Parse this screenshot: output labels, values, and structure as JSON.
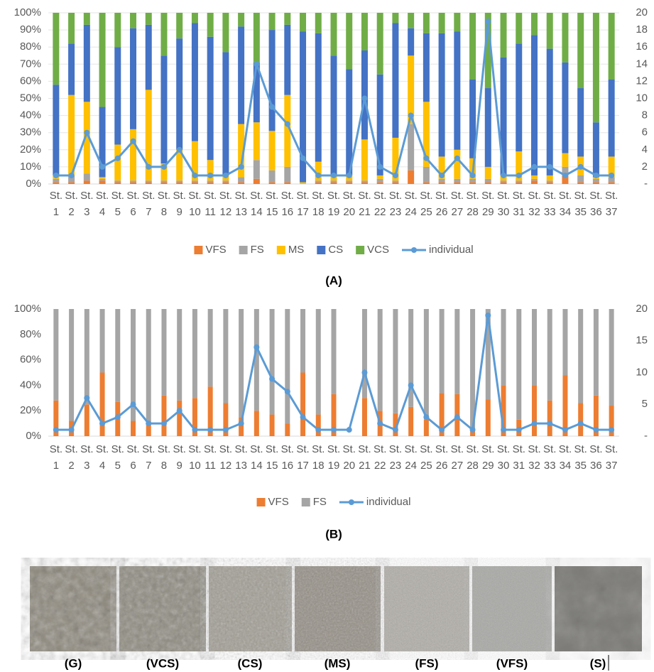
{
  "chart_data": [
    {
      "type": "bar",
      "stacked": true,
      "grid": true,
      "categories": [
        "St. 1",
        "St. 2",
        "St. 3",
        "St. 4",
        "St. 5",
        "St. 6",
        "St. 7",
        "St. 8",
        "St. 9",
        "St. 10",
        "St. 11",
        "St. 12",
        "St. 13",
        "St. 14",
        "St. 15",
        "St. 16",
        "St. 17",
        "St. 18",
        "St. 19",
        "St. 20",
        "St. 21",
        "St. 22",
        "St. 23",
        "St. 24",
        "St. 25",
        "St. 26",
        "St. 27",
        "St. 28",
        "St. 29",
        "St. 30",
        "St. 31",
        "St. 32",
        "St. 33",
        "St. 34",
        "St. 35",
        "St. 36",
        "St. 37"
      ],
      "ylim": [
        0,
        100
      ],
      "yticks": [
        {
          "value": 0,
          "label": "0%"
        },
        {
          "value": 10,
          "label": "10%"
        },
        {
          "value": 20,
          "label": "20%"
        },
        {
          "value": 30,
          "label": "30%"
        },
        {
          "value": 40,
          "label": "40%"
        },
        {
          "value": 50,
          "label": "50%"
        },
        {
          "value": 60,
          "label": "60%"
        },
        {
          "value": 70,
          "label": "70%"
        },
        {
          "value": 80,
          "label": "80%"
        },
        {
          "value": 90,
          "label": "90%"
        },
        {
          "value": 100,
          "label": "100%"
        }
      ],
      "y2lim": [
        0,
        20
      ],
      "y2ticks": [
        {
          "value": 0,
          "label": "-"
        },
        2,
        4,
        6,
        8,
        10,
        12,
        14,
        16,
        18,
        20
      ],
      "series": [
        {
          "name": "VFS",
          "color": "#ed7d31",
          "values": [
            1,
            1,
            2,
            2,
            1,
            1,
            1,
            1,
            1,
            1,
            1,
            1,
            1,
            3,
            1,
            1,
            0,
            1,
            1,
            1,
            1,
            1,
            1,
            8,
            1,
            1,
            1,
            1,
            1,
            1,
            1,
            2,
            1,
            5,
            1,
            1,
            1
          ]
        },
        {
          "name": "FS",
          "color": "#a5a5a5",
          "values": [
            2,
            4,
            4,
            1,
            1,
            1,
            1,
            1,
            1,
            1,
            1,
            1,
            3,
            11,
            7,
            9,
            0,
            1,
            1,
            1,
            1,
            2,
            1,
            27,
            9,
            2,
            2,
            2,
            2,
            1,
            1,
            1,
            1,
            5,
            4,
            2,
            3
          ]
        },
        {
          "name": "MS",
          "color": "#ffc000",
          "values": [
            2,
            47,
            42,
            1,
            21,
            30,
            53,
            10,
            18,
            23,
            12,
            3,
            31,
            22,
            23,
            42,
            1,
            11,
            3,
            3,
            24,
            2,
            25,
            40,
            38,
            13,
            17,
            12,
            7,
            3,
            17,
            2,
            3,
            8,
            11,
            1,
            12
          ]
        },
        {
          "name": "CS",
          "color": "#4472c4",
          "values": [
            53,
            30,
            45,
            41,
            57,
            59,
            38,
            63,
            65,
            69,
            72,
            72,
            57,
            35,
            59,
            41,
            88,
            75,
            70,
            62,
            52,
            59,
            67,
            16,
            40,
            72,
            69,
            46,
            46,
            69,
            63,
            82,
            74,
            53,
            40,
            32,
            45
          ]
        },
        {
          "name": "VCS",
          "color": "#70ad47",
          "values": [
            42,
            18,
            7,
            55,
            20,
            9,
            7,
            25,
            15,
            6,
            14,
            23,
            8,
            29,
            10,
            7,
            11,
            12,
            25,
            33,
            22,
            36,
            6,
            9,
            12,
            12,
            11,
            39,
            44,
            26,
            18,
            13,
            21,
            29,
            44,
            64,
            39
          ]
        },
        {
          "name": "individual",
          "color": "#5b9bd5",
          "type": "line",
          "axis": "y2",
          "values": [
            1,
            1,
            6,
            2,
            3,
            5,
            2,
            2,
            4,
            1,
            1,
            1,
            2,
            14,
            9,
            7,
            3,
            1,
            1,
            1,
            10,
            2,
            1,
            8,
            3,
            1,
            3,
            1,
            19,
            1,
            1,
            2,
            2,
            1,
            2,
            1,
            1
          ]
        }
      ]
    },
    {
      "type": "bar",
      "stacked": true,
      "grid": false,
      "categories": [
        "St. 1",
        "St. 2",
        "St. 3",
        "St. 4",
        "St. 5",
        "St. 6",
        "St. 7",
        "St. 8",
        "St. 9",
        "St. 10",
        "St. 11",
        "St. 12",
        "St. 13",
        "St. 14",
        "St. 15",
        "St. 16",
        "St. 17",
        "St. 18",
        "St. 19",
        "St. 20",
        "St. 21",
        "St. 22",
        "St. 23",
        "St. 24",
        "St. 25",
        "St. 26",
        "St. 27",
        "St. 28",
        "St. 29",
        "St. 30",
        "St. 31",
        "St. 32",
        "St. 33",
        "St. 34",
        "St. 35",
        "St. 36",
        "St. 37"
      ],
      "ylim": [
        0,
        100
      ],
      "yticks": [
        {
          "value": 0,
          "label": "0%"
        },
        {
          "value": 20,
          "label": "20%"
        },
        {
          "value": 40,
          "label": "40%"
        },
        {
          "value": 60,
          "label": "60%"
        },
        {
          "value": 80,
          "label": "80%"
        },
        {
          "value": 100,
          "label": "100%"
        }
      ],
      "y2lim": [
        0,
        20
      ],
      "y2ticks": [
        {
          "value": 0,
          "label": "-"
        },
        5,
        10,
        15,
        20
      ],
      "series": [
        {
          "name": "VFS",
          "color": "#ed7d31",
          "values": [
            28,
            12,
            25,
            50,
            27,
            12,
            10,
            32,
            28,
            30,
            39,
            26,
            15,
            20,
            17,
            10,
            50,
            17,
            33,
            null,
            30,
            20,
            18,
            23,
            13,
            34,
            33,
            5,
            29,
            40,
            13,
            40,
            28,
            48,
            26,
            32,
            24
          ]
        },
        {
          "name": "FS",
          "color": "#a5a5a5",
          "values": [
            72,
            88,
            75,
            50,
            73,
            88,
            90,
            68,
            72,
            70,
            61,
            74,
            85,
            80,
            83,
            90,
            50,
            83,
            67,
            null,
            70,
            80,
            82,
            77,
            87,
            66,
            67,
            95,
            71,
            60,
            87,
            60,
            72,
            52,
            74,
            68,
            76
          ]
        },
        {
          "name": "individual",
          "color": "#5b9bd5",
          "type": "line",
          "axis": "y2",
          "values": [
            1,
            1,
            6,
            2,
            3,
            5,
            2,
            2,
            4,
            1,
            1,
            1,
            2,
            14,
            9,
            7,
            3,
            1,
            1,
            1,
            10,
            2,
            1,
            8,
            3,
            1,
            3,
            1,
            19,
            1,
            1,
            2,
            2,
            1,
            2,
            1,
            1
          ]
        }
      ]
    }
  ],
  "figure": {
    "panel_labels": [
      "(A)",
      "(B)"
    ],
    "photo_labels": [
      "(G)",
      "(VCS)",
      "(CS)",
      "(MS)",
      "(FS)",
      "(VFS)",
      "(S)"
    ]
  }
}
